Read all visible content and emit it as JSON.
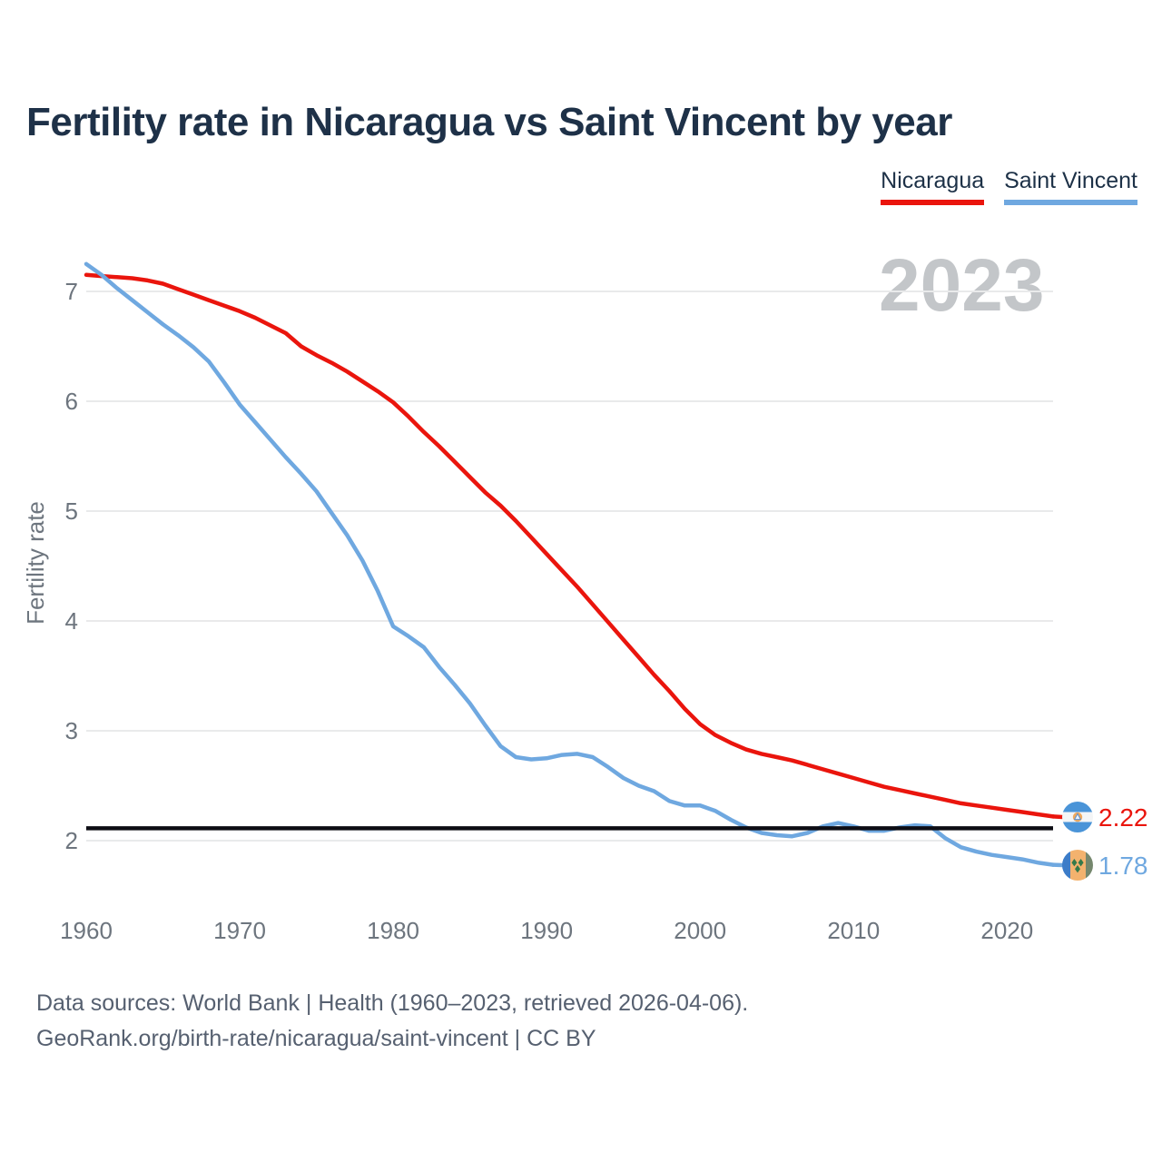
{
  "title": "Fertility rate in Nicaragua vs Saint Vincent by year",
  "watermark": "2023",
  "legend": [
    {
      "label": "Nicaragua",
      "color": "#ea150d"
    },
    {
      "label": "Saint Vincent",
      "color": "#6fa8e0"
    }
  ],
  "end_labels": [
    {
      "series": "Nicaragua",
      "value": "2.22",
      "flag": "nicaragua-flag-icon"
    },
    {
      "series": "Saint Vincent",
      "value": "1.78",
      "flag": "saint-vincent-flag-icon"
    }
  ],
  "footer": {
    "line1": "Data sources: World Bank | Health (1960–2023, retrieved 2026-04-06).",
    "line2": "GeoRank.org/birth-rate/nicaragua/saint-vincent | CC BY"
  },
  "colors": {
    "nicaragua": "#ea150d",
    "saint_vincent": "#6fa8e0",
    "reference_line": "#0d0d14",
    "grid": "#e9eaeb",
    "axis_text": "#6d757e",
    "title_text": "#1e3148",
    "watermark": "#c3c6c9",
    "footer_text": "#566070"
  },
  "chart_data": {
    "type": "line",
    "title": "Fertility rate in Nicaragua vs Saint Vincent by year",
    "xlabel": "",
    "ylabel": "Fertility rate",
    "xlim": [
      1960,
      2023
    ],
    "ylim": [
      1.6,
      7.4
    ],
    "x_ticks": [
      1960,
      1970,
      1980,
      1990,
      2000,
      2010,
      2020
    ],
    "y_ticks": [
      2,
      3,
      4,
      5,
      6,
      7
    ],
    "grid": "horizontal",
    "legend_position": "top-right",
    "reference_line": {
      "value": 2.1
    },
    "years": [
      1960,
      1961,
      1962,
      1963,
      1964,
      1965,
      1966,
      1967,
      1968,
      1969,
      1970,
      1971,
      1972,
      1973,
      1974,
      1975,
      1976,
      1977,
      1978,
      1979,
      1980,
      1981,
      1982,
      1983,
      1984,
      1985,
      1986,
      1987,
      1988,
      1989,
      1990,
      1991,
      1992,
      1993,
      1994,
      1995,
      1996,
      1997,
      1998,
      1999,
      2000,
      2001,
      2002,
      2003,
      2004,
      2005,
      2006,
      2007,
      2008,
      2009,
      2010,
      2011,
      2012,
      2013,
      2014,
      2015,
      2016,
      2017,
      2018,
      2019,
      2020,
      2021,
      2022,
      2023
    ],
    "series": [
      {
        "name": "Nicaragua",
        "color": "#ea150d",
        "end_label": "2.22",
        "values": [
          7.15,
          7.14,
          7.13,
          7.12,
          7.1,
          7.07,
          7.02,
          6.97,
          6.92,
          6.87,
          6.82,
          6.76,
          6.69,
          6.62,
          6.5,
          6.42,
          6.35,
          6.27,
          6.18,
          6.09,
          5.99,
          5.86,
          5.72,
          5.59,
          5.45,
          5.31,
          5.17,
          5.05,
          4.91,
          4.76,
          4.61,
          4.46,
          4.31,
          4.15,
          3.99,
          3.83,
          3.67,
          3.51,
          3.36,
          3.2,
          3.06,
          2.96,
          2.89,
          2.83,
          2.79,
          2.76,
          2.73,
          2.69,
          2.65,
          2.61,
          2.57,
          2.53,
          2.49,
          2.46,
          2.43,
          2.4,
          2.37,
          2.34,
          2.32,
          2.3,
          2.28,
          2.26,
          2.24,
          2.22
        ]
      },
      {
        "name": "Saint Vincent",
        "color": "#6fa8e0",
        "end_label": "1.78",
        "values": [
          7.25,
          7.15,
          7.03,
          6.92,
          6.81,
          6.7,
          6.6,
          6.49,
          6.36,
          6.17,
          5.97,
          5.81,
          5.65,
          5.49,
          5.34,
          5.18,
          4.98,
          4.78,
          4.55,
          4.27,
          3.95,
          3.86,
          3.76,
          3.58,
          3.42,
          3.25,
          3.05,
          2.86,
          2.76,
          2.74,
          2.75,
          2.78,
          2.79,
          2.76,
          2.67,
          2.57,
          2.5,
          2.45,
          2.36,
          2.32,
          2.32,
          2.27,
          2.19,
          2.12,
          2.07,
          2.05,
          2.04,
          2.07,
          2.13,
          2.16,
          2.13,
          2.09,
          2.09,
          2.12,
          2.14,
          2.13,
          2.02,
          1.94,
          1.9,
          1.87,
          1.85,
          1.83,
          1.8,
          1.78
        ]
      }
    ]
  }
}
